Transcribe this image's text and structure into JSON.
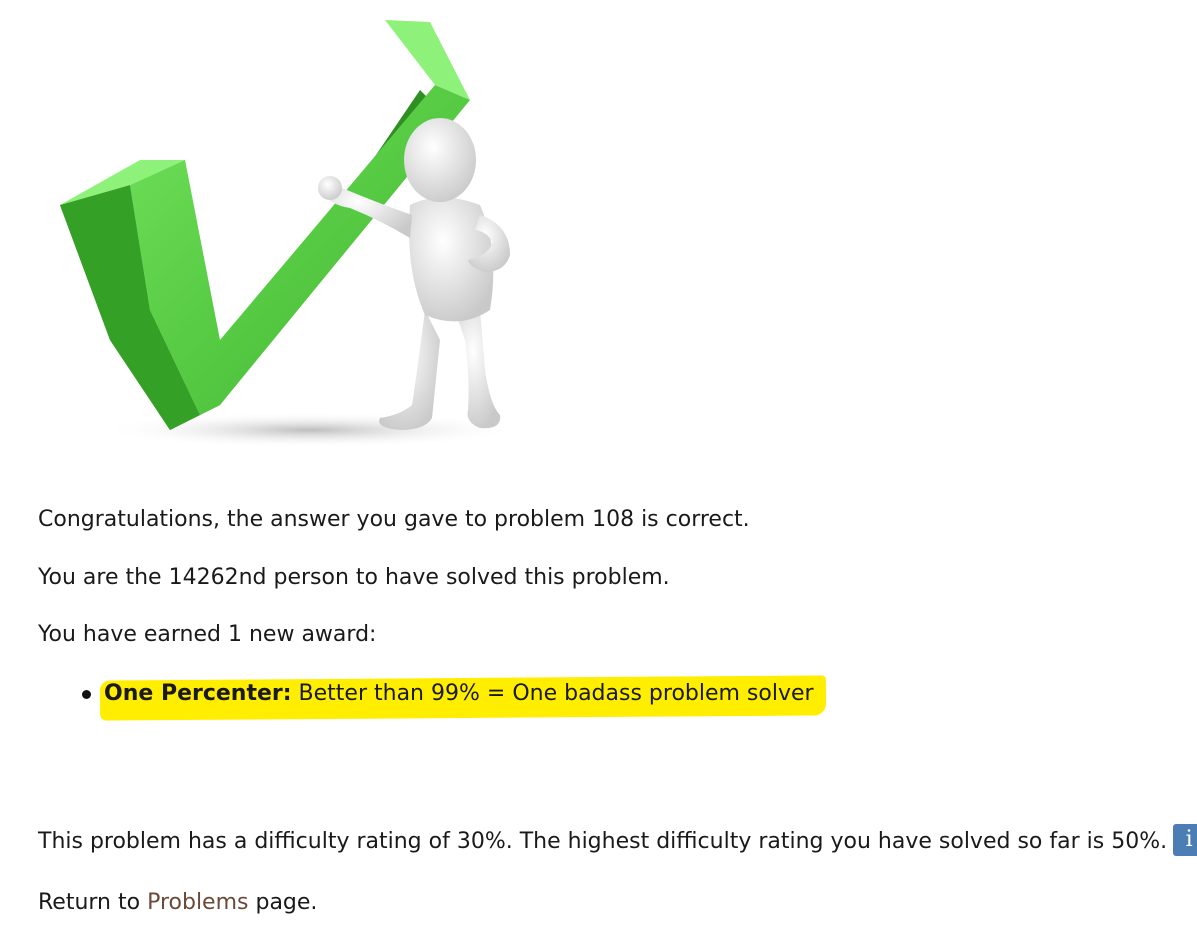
{
  "hero_image": {
    "icon": "checkmark-with-figure-icon",
    "check_color": "#4cc83a",
    "check_shadow_color": "#2e8a22"
  },
  "messages": {
    "congrats_prefix": "Congratulations, the answer you gave to problem ",
    "problem_number": "108",
    "congrats_suffix": " is correct.",
    "solver_prefix": "You are the ",
    "solver_rank": "14262nd",
    "solver_suffix": " person to have solved this problem.",
    "awards_heading": "You have earned 1 new award:"
  },
  "awards": [
    {
      "name": "One Percenter:",
      "description": " Better than 99% = One badass problem solver",
      "highlight_color": "#ffee00"
    }
  ],
  "difficulty": {
    "text_prefix": "This problem has a difficulty rating of ",
    "problem_rating": "30%",
    "text_middle": ". The highest difficulty rating you have solved so far is ",
    "highest_rating": "50%",
    "text_suffix": ".",
    "info_button_label": "i",
    "info_button_color": "#4a7eb5"
  },
  "return_line": {
    "prefix": "Return to ",
    "link_label": "Problems",
    "suffix": " page."
  }
}
